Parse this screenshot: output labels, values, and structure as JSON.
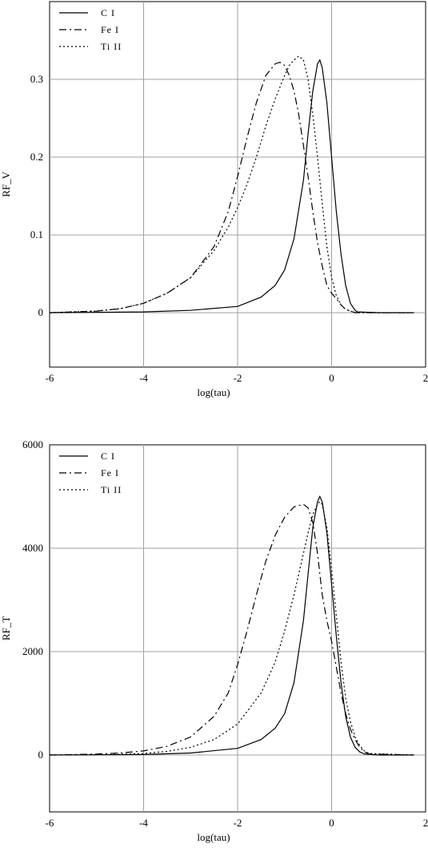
{
  "chart_data": [
    {
      "type": "line",
      "xlabel": "log(tau)",
      "ylabel": "RF_V",
      "xlim": [
        -6,
        2
      ],
      "ylim": [
        -0.07,
        0.4
      ],
      "xticks": [
        -6,
        -4,
        -2,
        0,
        2
      ],
      "xtick_labels": [
        "-6",
        "-4",
        "-2",
        "0",
        "2"
      ],
      "yticks": [
        0,
        0.1,
        0.2,
        0.3
      ],
      "ytick_labels": [
        "0",
        "0.1",
        "0.2",
        "0.3"
      ],
      "grid": true,
      "legend_position": "top-left",
      "series": [
        {
          "name": "C I",
          "dash": "solid",
          "x": [
            -6,
            -4,
            -3,
            -2,
            -1.5,
            -1.2,
            -1.0,
            -0.8,
            -0.6,
            -0.5,
            -0.4,
            -0.3,
            -0.25,
            -0.2,
            -0.1,
            0,
            0.1,
            0.2,
            0.3,
            0.4,
            0.5,
            0.55,
            1.0,
            1.75
          ],
          "y": [
            0,
            0.001,
            0.003,
            0.008,
            0.02,
            0.035,
            0.055,
            0.095,
            0.17,
            0.23,
            0.285,
            0.32,
            0.325,
            0.315,
            0.27,
            0.2,
            0.13,
            0.075,
            0.035,
            0.012,
            0.003,
            0.001,
            0,
            0
          ]
        },
        {
          "name": "Fe I",
          "dash": "dash-dot",
          "x": [
            -6,
            -5.0,
            -4.5,
            -4.0,
            -3.5,
            -3.0,
            -2.5,
            -2.2,
            -2.0,
            -1.8,
            -1.6,
            -1.4,
            -1.2,
            -1.1,
            -1.0,
            -0.9,
            -0.8,
            -0.7,
            -0.6,
            -0.5,
            -0.4,
            -0.3,
            -0.2,
            -0.1,
            0,
            0.1,
            0.2,
            0.3,
            0.5,
            1.75
          ],
          "y": [
            0,
            0.002,
            0.005,
            0.012,
            0.025,
            0.045,
            0.085,
            0.13,
            0.175,
            0.225,
            0.27,
            0.305,
            0.32,
            0.322,
            0.318,
            0.305,
            0.285,
            0.255,
            0.215,
            0.175,
            0.13,
            0.09,
            0.06,
            0.035,
            0.025,
            0.018,
            0.01,
            0.004,
            0,
            0
          ]
        },
        {
          "name": "Ti II",
          "dash": "dotted",
          "x": [
            -6,
            -5.0,
            -4.5,
            -4.0,
            -3.5,
            -3.0,
            -2.5,
            -2.2,
            -2.0,
            -1.8,
            -1.6,
            -1.4,
            -1.2,
            -1.0,
            -0.9,
            -0.8,
            -0.7,
            -0.6,
            -0.5,
            -0.4,
            -0.3,
            -0.2,
            -0.1,
            0,
            0.1,
            0.2,
            0.3,
            0.5,
            1.75
          ],
          "y": [
            0,
            0.002,
            0.005,
            0.012,
            0.025,
            0.045,
            0.08,
            0.11,
            0.135,
            0.165,
            0.2,
            0.24,
            0.275,
            0.305,
            0.318,
            0.325,
            0.33,
            0.325,
            0.3,
            0.255,
            0.2,
            0.14,
            0.085,
            0.045,
            0.022,
            0.01,
            0.004,
            0,
            0
          ]
        }
      ]
    },
    {
      "type": "line",
      "xlabel": "log(tau)",
      "ylabel": "RF_T",
      "xlim": [
        -6,
        2
      ],
      "ylim": [
        -1100,
        6000
      ],
      "xticks": [
        -6,
        -4,
        -2,
        0,
        2
      ],
      "xtick_labels": [
        "-6",
        "-4",
        "-2",
        "0",
        "2"
      ],
      "yticks": [
        0,
        2000,
        4000,
        6000
      ],
      "ytick_labels": [
        "0",
        "2000",
        "4000",
        "6000"
      ],
      "grid": true,
      "legend_position": "top-left",
      "series": [
        {
          "name": "C I",
          "dash": "solid",
          "x": [
            -6,
            -4,
            -3,
            -2,
            -1.5,
            -1.2,
            -1.0,
            -0.8,
            -0.6,
            -0.5,
            -0.4,
            -0.3,
            -0.25,
            -0.2,
            -0.1,
            0,
            0.1,
            0.2,
            0.3,
            0.4,
            0.5,
            0.6,
            0.7,
            1.0,
            1.75
          ],
          "y": [
            0,
            10,
            40,
            130,
            300,
            520,
            800,
            1400,
            2600,
            3500,
            4400,
            4900,
            5000,
            4900,
            4300,
            3300,
            2300,
            1400,
            750,
            350,
            150,
            60,
            20,
            0,
            0
          ]
        },
        {
          "name": "Fe I",
          "dash": "dash-dot",
          "x": [
            -6,
            -5.0,
            -4.5,
            -4.0,
            -3.5,
            -3.0,
            -2.5,
            -2.2,
            -2.0,
            -1.8,
            -1.6,
            -1.4,
            -1.2,
            -1.0,
            -0.8,
            -0.6,
            -0.5,
            -0.4,
            -0.3,
            -0.2,
            -0.1,
            0,
            0.1,
            0.2,
            0.3,
            0.4,
            0.5,
            0.6,
            0.7,
            0.8,
            1.75
          ],
          "y": [
            0,
            20,
            40,
            80,
            170,
            350,
            750,
            1200,
            1750,
            2400,
            3100,
            3750,
            4250,
            4600,
            4800,
            4850,
            4780,
            4500,
            3900,
            3100,
            2600,
            2200,
            1700,
            1200,
            800,
            500,
            300,
            150,
            60,
            20,
            0
          ]
        },
        {
          "name": "Ti II",
          "dash": "dotted",
          "x": [
            -6,
            -5.0,
            -4.5,
            -4.0,
            -3.5,
            -3.0,
            -2.5,
            -2.0,
            -1.5,
            -1.2,
            -1.0,
            -0.8,
            -0.6,
            -0.5,
            -0.4,
            -0.3,
            -0.25,
            -0.2,
            -0.1,
            0,
            0.1,
            0.2,
            0.3,
            0.4,
            0.5,
            0.6,
            0.7,
            0.8,
            1.75
          ],
          "y": [
            0,
            5,
            15,
            30,
            70,
            150,
            300,
            600,
            1200,
            1800,
            2400,
            3100,
            3900,
            4300,
            4650,
            4850,
            4900,
            4850,
            4400,
            3600,
            2700,
            1800,
            1100,
            650,
            350,
            180,
            80,
            30,
            0
          ]
        }
      ]
    }
  ]
}
